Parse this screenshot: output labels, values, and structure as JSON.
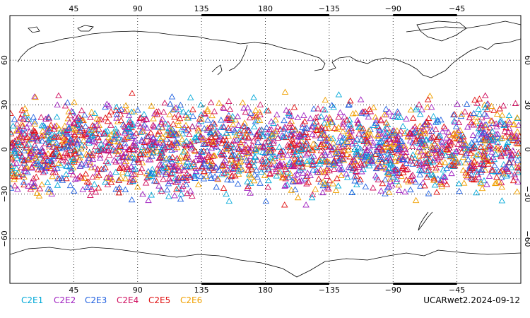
{
  "map": {
    "projection": "equirectangular",
    "lon_range": [
      0,
      360
    ],
    "lat_range": [
      -90,
      90
    ],
    "top_lon_ticks": [
      "45",
      "90",
      "135",
      "180",
      "−135",
      "−90",
      "−45"
    ],
    "bottom_lon_ticks": [
      "45",
      "90",
      "135",
      "180",
      "−135",
      "−90",
      "−45"
    ],
    "lat_ticks": [
      "60",
      "30",
      "0",
      "−30",
      "−60"
    ],
    "gridline_style": "dotted",
    "coastline_color": "#000000",
    "observation_marker": "open-triangle",
    "observation_lat_band": [
      -42,
      42
    ]
  },
  "legend": {
    "items": [
      {
        "label": "C2E1",
        "color": "#00a8d8"
      },
      {
        "label": "C2E2",
        "color": "#a020c0"
      },
      {
        "label": "C2E3",
        "color": "#2060e0"
      },
      {
        "label": "C2E4",
        "color": "#d01060"
      },
      {
        "label": "C2E5",
        "color": "#e01010"
      },
      {
        "label": "C2E6",
        "color": "#f0a000"
      }
    ]
  },
  "product_label": "UCARwet2.2024-09-12"
}
